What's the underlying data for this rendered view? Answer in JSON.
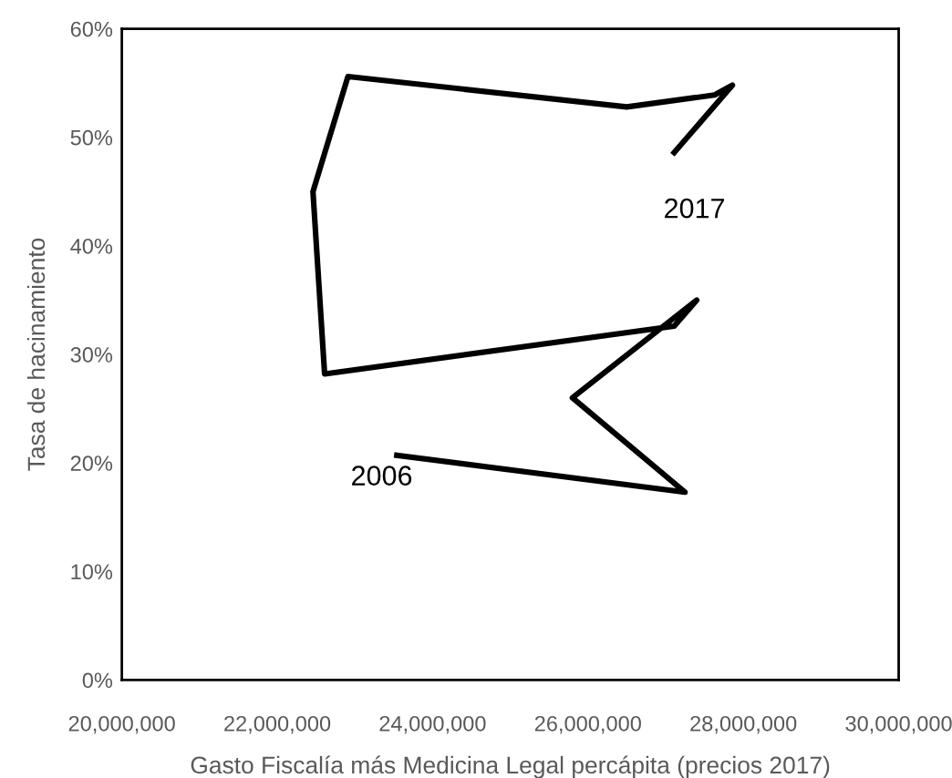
{
  "chart_data": {
    "type": "line",
    "xlabel": "Gasto Fiscalía más Medicina Legal percápita (precios 2017)",
    "ylabel": "Tasa de hacinamiento",
    "series": [
      {
        "color": "#000000",
        "x": [
          23540000,
          27250000,
          25800000,
          27400000,
          27110000,
          22610000,
          22460000,
          22910000,
          26500000,
          27630000,
          27860000,
          27110000
        ],
        "values": [
          20.7,
          17.3,
          26.0,
          35.0,
          32.6,
          28.2,
          45.0,
          55.6,
          52.8,
          53.9,
          54.8,
          48.6
        ]
      }
    ],
    "xlim": [
      20000000,
      30000000
    ],
    "xticks": [
      {
        "value": 20000000,
        "label": "20,000,000"
      },
      {
        "value": 22000000,
        "label": "22,000,000"
      },
      {
        "value": 24000000,
        "label": "24,000,000"
      },
      {
        "value": 26000000,
        "label": "26,000,000"
      },
      {
        "value": 28000000,
        "label": "28,000,000"
      },
      {
        "value": 30000000,
        "label": "30,000,000"
      }
    ],
    "ylim": [
      0,
      60
    ],
    "yticks": [
      {
        "value": 0,
        "label": "0%"
      },
      {
        "value": 10,
        "label": "10%"
      },
      {
        "value": 20,
        "label": "20%"
      },
      {
        "value": 30,
        "label": "30%"
      },
      {
        "value": 40,
        "label": "40%"
      },
      {
        "value": 50,
        "label": "50%"
      },
      {
        "value": 60,
        "label": "60%"
      }
    ],
    "annotations": [
      {
        "text": "2006",
        "x": 23540000,
        "y": 20.7
      },
      {
        "text": "2017",
        "x": 27110000,
        "y": 48.6
      }
    ],
    "grid": false,
    "legend": false,
    "marker": "none",
    "line_style": "solid"
  }
}
